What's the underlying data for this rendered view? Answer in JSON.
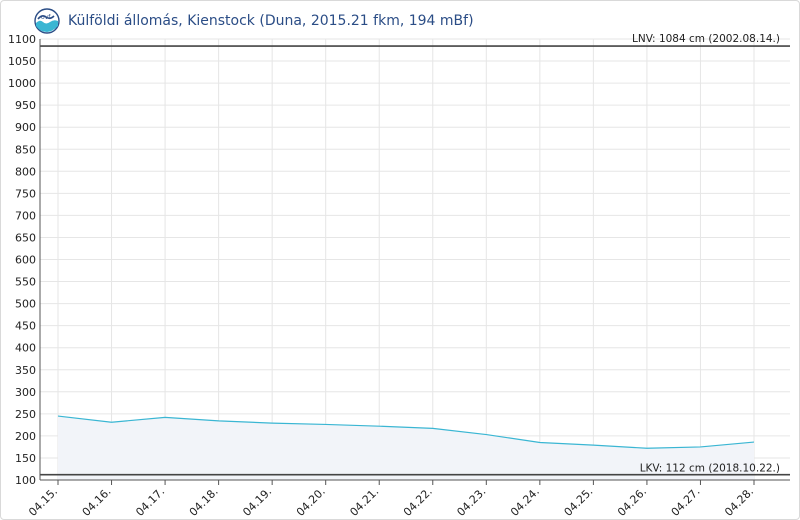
{
  "station": {
    "title": "Külföldi állomás, Kienstock (Duna, 2015.21 fkm, 194 mBf)",
    "logo_icon": "water-wave-logo-icon"
  },
  "chart_data": {
    "type": "area",
    "title": "Külföldi állomás, Kienstock (Duna, 2015.21 fkm, 194 mBf)",
    "xlabel": "",
    "ylabel": "",
    "categories": [
      "04.15.",
      "04.16.",
      "04.17.",
      "04.18.",
      "04.19.",
      "04.20.",
      "04.21.",
      "04.22.",
      "04.23.",
      "04.24.",
      "04.25.",
      "04.26.",
      "04.27.",
      "04.28."
    ],
    "y_ticks": [
      100,
      150,
      200,
      250,
      300,
      350,
      400,
      450,
      500,
      550,
      600,
      650,
      700,
      750,
      800,
      850,
      900,
      950,
      1000,
      1050,
      1100
    ],
    "ylim": [
      100,
      1100
    ],
    "grid": true,
    "series": [
      {
        "values": [
          245,
          231,
          242,
          234,
          229,
          226,
          222,
          217,
          203,
          185,
          179,
          172,
          175,
          186
        ]
      }
    ],
    "reference_lines": [
      {
        "label": "LNV: 1084 cm (2002.08.14.)",
        "value": 1084
      },
      {
        "label": "LKV: 112 cm (2018.10.22.)",
        "value": 112
      }
    ],
    "colors": {
      "line": "#3ab6d3",
      "area": "#f2f4f9",
      "title": "#2b4d86",
      "grid": "#e6e6e6"
    }
  }
}
